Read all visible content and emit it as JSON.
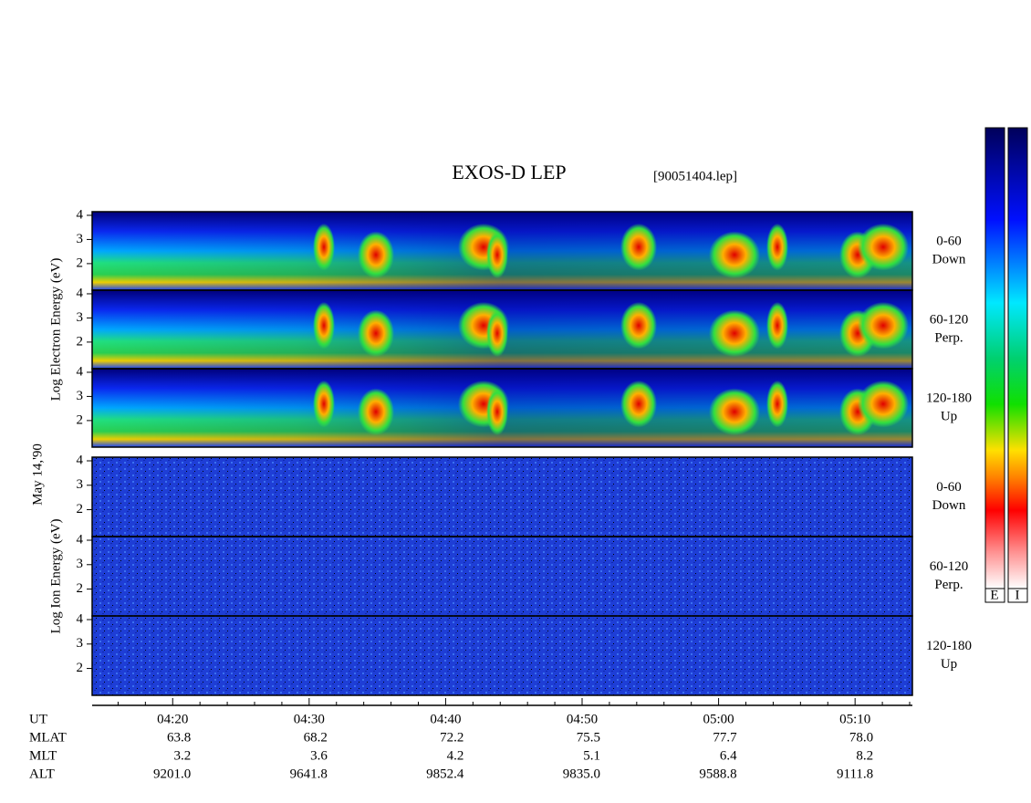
{
  "header": {
    "title": "EXOS-D LEP",
    "file": "[90051404.lep]"
  },
  "date": "May 14,'90",
  "groups": [
    {
      "axis_label": "Log Electron Energy (eV)",
      "panels": [
        {
          "label": [
            "0-60",
            "Down"
          ]
        },
        {
          "label": [
            "60-120",
            "Perp."
          ]
        },
        {
          "label": [
            "120-180",
            "Up"
          ]
        }
      ]
    },
    {
      "axis_label": "Log Ion Energy (eV)",
      "panels": [
        {
          "label": [
            "0-60",
            "Down"
          ]
        },
        {
          "label": [
            "60-120",
            "Perp."
          ]
        },
        {
          "label": [
            "120-180",
            "Up"
          ]
        }
      ]
    }
  ],
  "energy_axis": {
    "ylim": [
      0.9,
      4.15
    ],
    "yticks": [
      2,
      3,
      4
    ]
  },
  "time_axis": {
    "label": "UT",
    "xlim": [
      254.1,
      314.2
    ],
    "xticks": [
      {
        "value": 260,
        "label": "04:20"
      },
      {
        "value": 270,
        "label": "04:30"
      },
      {
        "value": 280,
        "label": "04:40"
      },
      {
        "value": 290,
        "label": "04:50"
      },
      {
        "value": 300,
        "label": "05:00"
      },
      {
        "value": 310,
        "label": "05:10"
      }
    ],
    "minor_ticks": [
      256,
      258,
      262,
      264,
      266,
      268,
      272,
      274,
      276,
      278,
      282,
      284,
      286,
      288,
      292,
      294,
      296,
      298,
      302,
      304,
      306,
      308,
      312,
      314
    ]
  },
  "ephemeris": [
    {
      "label": "MLAT",
      "values": [
        "63.8",
        "68.2",
        "72.2",
        "75.5",
        "77.7",
        "78.0"
      ]
    },
    {
      "label": "MLT",
      "values": [
        "3.2",
        "3.6",
        "4.2",
        "5.1",
        "6.4",
        "8.2"
      ]
    },
    {
      "label": "ALT",
      "values": [
        "9201.0",
        "9641.8",
        "9852.4",
        "9835.0",
        "9588.8",
        "9111.8"
      ]
    }
  ],
  "colorbars": [
    {
      "label": "E"
    },
    {
      "label": "I"
    }
  ]
}
